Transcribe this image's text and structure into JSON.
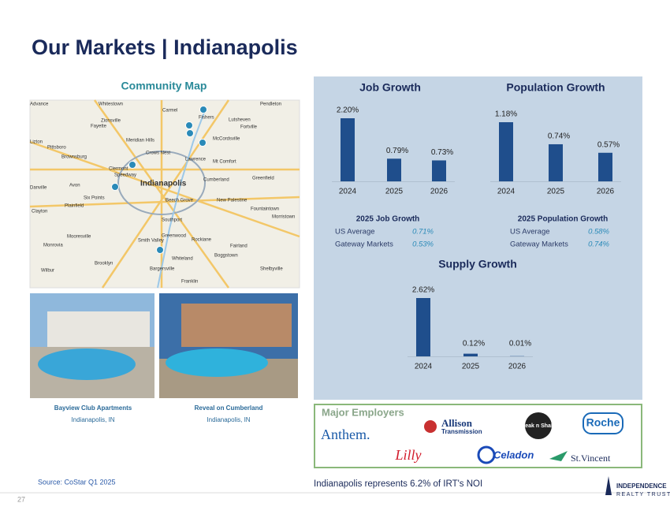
{
  "header": {
    "title": "Our Markets | Indianapolis"
  },
  "map": {
    "title": "Community Map",
    "labels": [
      "Advance",
      "Whitestown",
      "Carmel",
      "Fishers",
      "Pendleton",
      "Zionsville",
      "Lutsheven",
      "Fortville",
      "Fayette",
      "Lizton",
      "Meridian Hills",
      "McCordsville",
      "Pittsboro",
      "Brownsburg",
      "Crows Nest",
      "Lawrence",
      "Mt Comfort",
      "Clermont",
      "Speedway",
      "Indianapolis",
      "Cumberland",
      "Greenfield",
      "Danville",
      "Avon",
      "Six Points",
      "Beech Grove",
      "New Palestine",
      "Plainfield",
      "Clayton",
      "Fountaintown",
      "Southport",
      "Morristown",
      "Mooresville",
      "Smith Valley",
      "Greenwood",
      "Rockiane",
      "Fairland",
      "Monrovia",
      "Boggstown",
      "Whiteland",
      "Brooklyn",
      "Bargersville",
      "Shelbyville",
      "Wilbur",
      "Franklin"
    ]
  },
  "properties": [
    {
      "name": "Bayview Club Apartments",
      "location": "Indianapolis, IN"
    },
    {
      "name": "Reveal on Cumberland",
      "location": "Indianapolis, IN"
    }
  ],
  "charts": [
    {
      "type": "bar",
      "title": "Job Growth",
      "categories": [
        "2024",
        "2025",
        "2026"
      ],
      "values": [
        2.2,
        0.79,
        0.73
      ],
      "value_labels": [
        "2.20%",
        "0.79%",
        "0.73%"
      ],
      "color": "#1f4e8c"
    },
    {
      "type": "bar",
      "title": "Population Growth",
      "categories": [
        "2024",
        "2025",
        "2026"
      ],
      "values": [
        1.18,
        0.74,
        0.57
      ],
      "value_labels": [
        "1.18%",
        "0.74%",
        "0.57%"
      ],
      "color": "#1f4e8c"
    },
    {
      "type": "bar",
      "title": "Supply Growth",
      "categories": [
        "2024",
        "2025",
        "2026"
      ],
      "values": [
        2.62,
        0.12,
        0.01
      ],
      "value_labels": [
        "2.62%",
        "0.12%",
        "0.01%"
      ],
      "color": "#1f4e8c"
    }
  ],
  "tables": [
    {
      "title": "2025 Job Growth",
      "rows": [
        [
          "US Average",
          "0.71%"
        ],
        [
          "Gateway Markets",
          "0.53%"
        ]
      ]
    },
    {
      "title": "2025 Population Growth",
      "rows": [
        [
          "US Average",
          "0.58%"
        ],
        [
          "Gateway Markets",
          "0.74%"
        ]
      ]
    }
  ],
  "employers": {
    "title": "Major Employers",
    "names": [
      "Anthem.",
      "Allison",
      "Transmission",
      "Steak n Shake",
      "Roche",
      "Lilly",
      "Celadon",
      "St.Vincent"
    ]
  },
  "footer": {
    "source": "Source: CoStar Q1 2025",
    "note": "Indianapolis represents 6.2% of IRT's NOI",
    "page": "27",
    "logo_top": "INDEPENDENCE",
    "logo_bottom": "REALTY TRUST"
  }
}
